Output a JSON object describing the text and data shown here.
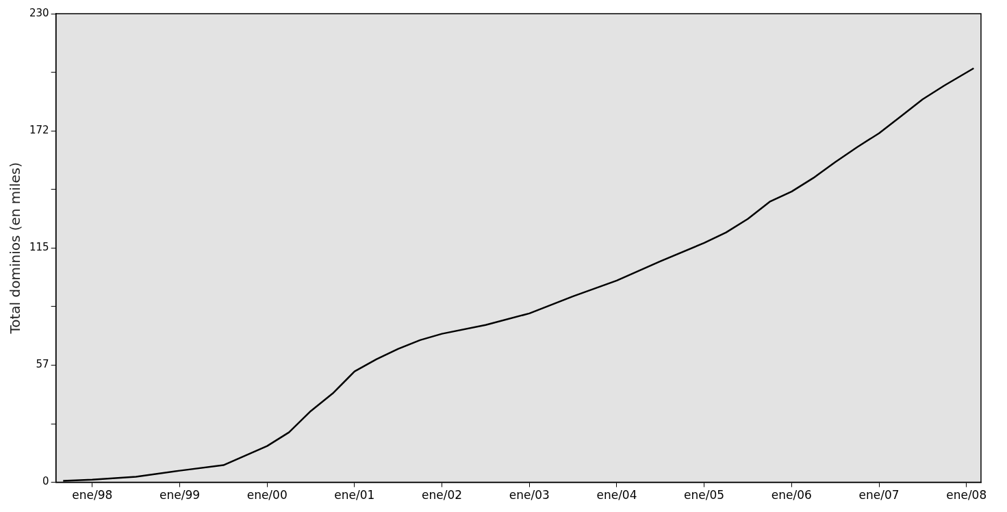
{
  "chart_data": {
    "type": "line",
    "ylabel": "Total dominios (en miles)",
    "x": [
      "1997-09",
      "1998-01",
      "1998-07",
      "1999-01",
      "1999-07",
      "2000-01",
      "2000-04",
      "2000-07",
      "2000-10",
      "2001-01",
      "2001-04",
      "2001-07",
      "2001-10",
      "2002-01",
      "2002-07",
      "2003-01",
      "2003-07",
      "2004-01",
      "2004-07",
      "2005-01",
      "2005-04",
      "2005-07",
      "2005-10",
      "2006-01",
      "2006-04",
      "2006-07",
      "2006-10",
      "2007-01",
      "2007-04",
      "2007-07",
      "2007-10",
      "2008-02"
    ],
    "series": [
      {
        "color": "#000000",
        "values": [
          0.7,
          1.3,
          2.7,
          5.7,
          8.4,
          17.8,
          24.5,
          35,
          43.6,
          54.4,
          60.4,
          65.5,
          69.8,
          72.9,
          77.2,
          82.9,
          91.3,
          99,
          108.5,
          117.5,
          122.6,
          129.3,
          137.7,
          142.7,
          149.4,
          157.2,
          164.5,
          171.3,
          179.6,
          188,
          194.8,
          203.2
        ]
      }
    ],
    "xlim": [
      "1997-08",
      "2008-03"
    ],
    "xticks": [
      {
        "value": "1998-01",
        "label": "ene/98"
      },
      {
        "value": "1999-01",
        "label": "ene/99"
      },
      {
        "value": "2000-01",
        "label": "ene/00"
      },
      {
        "value": "2001-01",
        "label": "ene/01"
      },
      {
        "value": "2002-01",
        "label": "ene/02"
      },
      {
        "value": "2003-01",
        "label": "ene/03"
      },
      {
        "value": "2004-01",
        "label": "ene/04"
      },
      {
        "value": "2005-01",
        "label": "ene/05"
      },
      {
        "value": "2006-01",
        "label": "ene/06"
      },
      {
        "value": "2007-01",
        "label": "ene/07"
      },
      {
        "value": "2008-01",
        "label": "ene/08"
      }
    ],
    "ylim": [
      0,
      230
    ],
    "yticks": [
      0,
      {
        "value": 28.75,
        "label": null
      },
      {
        "value": 57.5,
        "label": "57"
      },
      {
        "value": 86.25,
        "label": null
      },
      115,
      {
        "value": 143.75,
        "label": null
      },
      {
        "value": 172.5,
        "label": "172"
      },
      {
        "value": 201.25,
        "label": null
      },
      230
    ],
    "grid": false,
    "legend": false,
    "marker": "none",
    "line_style": "solid"
  }
}
